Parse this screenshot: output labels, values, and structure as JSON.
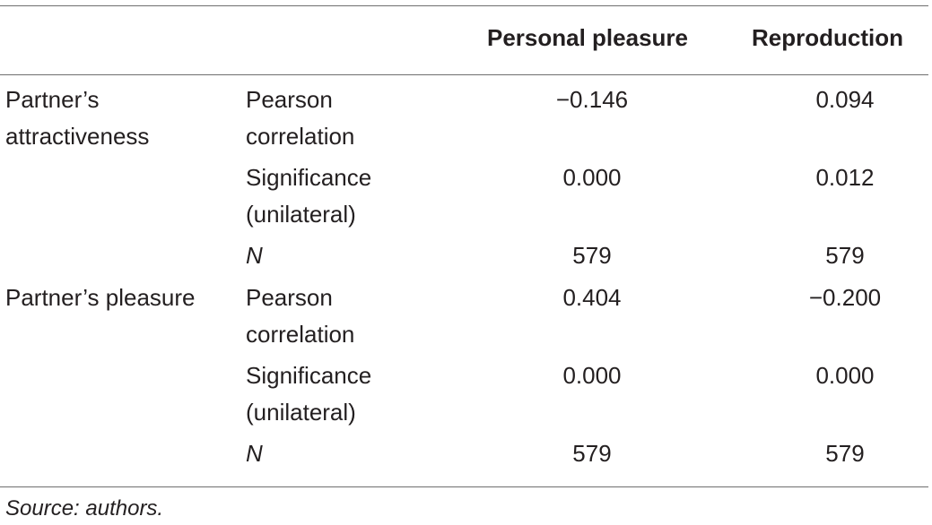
{
  "table": {
    "headers": {
      "col1": "",
      "col2": "",
      "personal_pleasure": "Personal pleasure",
      "reproduction": "Reproduction"
    },
    "groups": [
      {
        "label_line1": "Partner’s",
        "label_line2": "attractiveness",
        "rows": [
          {
            "stat_line1": "Pearson",
            "stat_line2": "correlation",
            "personal_pleasure": "−0.146",
            "reproduction": "0.094"
          },
          {
            "stat_line1": "Significance",
            "stat_line2": "(unilateral)",
            "personal_pleasure": "0.000",
            "reproduction": "0.012"
          },
          {
            "stat_line1": "N",
            "stat_line2": "",
            "personal_pleasure": "579",
            "reproduction": "579"
          }
        ]
      },
      {
        "label_line1": "Partner’s pleasure",
        "label_line2": "",
        "rows": [
          {
            "stat_line1": "Pearson",
            "stat_line2": "correlation",
            "personal_pleasure": "0.404",
            "reproduction": "−0.200"
          },
          {
            "stat_line1": "Significance",
            "stat_line2": "(unilateral)",
            "personal_pleasure": "0.000",
            "reproduction": "0.000"
          },
          {
            "stat_line1": "N",
            "stat_line2": "",
            "personal_pleasure": "579",
            "reproduction": "579"
          }
        ]
      }
    ]
  },
  "footnote": "Source: authors."
}
